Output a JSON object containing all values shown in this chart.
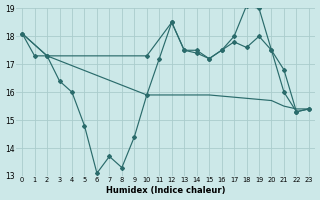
{
  "background_color": "#cce8e8",
  "grid_color": "#aacccc",
  "line_color": "#2a6b6b",
  "xlabel": "Humidex (Indice chaleur)",
  "xlim": [
    -0.5,
    23.5
  ],
  "ylim": [
    13,
    19
  ],
  "yticks": [
    13,
    14,
    15,
    16,
    17,
    18,
    19
  ],
  "xticks": [
    0,
    1,
    2,
    3,
    4,
    5,
    6,
    7,
    8,
    9,
    10,
    11,
    12,
    13,
    14,
    15,
    16,
    17,
    18,
    19,
    20,
    21,
    22,
    23
  ],
  "line1_x": [
    0,
    1,
    2,
    3,
    4,
    5,
    6,
    7,
    8,
    9,
    10,
    11,
    12,
    13,
    14,
    15,
    16,
    17,
    18,
    19,
    20,
    21,
    22,
    23
  ],
  "line1_y": [
    18.1,
    17.3,
    17.3,
    16.4,
    16.0,
    14.8,
    13.1,
    13.7,
    13.3,
    14.4,
    15.9,
    17.2,
    18.5,
    17.5,
    17.4,
    17.2,
    17.5,
    18.0,
    19.1,
    19.0,
    17.5,
    16.0,
    15.3,
    15.4
  ],
  "line2_x": [
    0,
    2,
    10,
    12,
    13,
    14,
    15,
    16,
    17,
    18,
    19,
    20,
    21,
    22,
    23
  ],
  "line2_y": [
    18.1,
    17.3,
    17.3,
    18.5,
    17.5,
    17.5,
    17.2,
    17.5,
    17.8,
    17.6,
    18.0,
    17.5,
    16.8,
    15.3,
    15.4
  ],
  "line3_x": [
    0,
    2,
    10,
    15,
    20,
    21,
    22,
    23
  ],
  "line3_y": [
    18.1,
    17.3,
    15.9,
    15.9,
    15.7,
    15.5,
    15.4,
    15.4
  ]
}
